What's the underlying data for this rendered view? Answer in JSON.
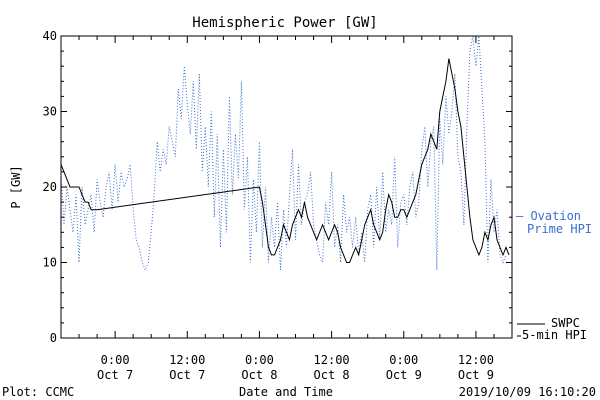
{
  "chart_data": {
    "type": "line",
    "title": "Hemispheric Power [GW]",
    "xlabel": "Date and Time",
    "ylabel": "P [GW]",
    "ylim": [
      0,
      40
    ],
    "xlim": [
      -9,
      66
    ],
    "yticks": [
      0,
      10,
      20,
      30,
      40
    ],
    "xticks": [
      {
        "h": 0,
        "time": "0:00",
        "date": "Oct 7"
      },
      {
        "h": 12,
        "time": "12:00",
        "date": "Oct 7"
      },
      {
        "h": 24,
        "time": "0:00",
        "date": "Oct 8"
      },
      {
        "h": 36,
        "time": "12:00",
        "date": "Oct 8"
      },
      {
        "h": 48,
        "time": "0:00",
        "date": "Oct 9"
      },
      {
        "h": 60,
        "time": "12:00",
        "date": "Oct 9"
      }
    ],
    "series": [
      {
        "name": "Ovation Prime HPI",
        "legend_text": "— Ovation",
        "legend_text2": "Prime HPI",
        "style": "dotted",
        "color": "#3a6fd0",
        "x": [
          -9,
          -8.5,
          -8,
          -7.5,
          -7,
          -6.5,
          -6,
          -5.5,
          -5,
          -4.5,
          -4,
          -3.5,
          -3,
          -2.5,
          -2,
          -1.5,
          -1,
          -0.5,
          0,
          0.5,
          1,
          1.5,
          2,
          2.5,
          3,
          3.5,
          4,
          4.5,
          5,
          5.5,
          6,
          6.5,
          7,
          7.5,
          8,
          8.5,
          9,
          9.5,
          10,
          10.5,
          11,
          11.5,
          12,
          12.5,
          13,
          13.5,
          14,
          14.5,
          15,
          15.5,
          16,
          16.5,
          17,
          17.5,
          18,
          18.5,
          19,
          19.5,
          20,
          20.5,
          21,
          21.5,
          22,
          22.5,
          23,
          23.5,
          24,
          24.5,
          25,
          25.5,
          26,
          26.5,
          27,
          27.5,
          28,
          28.5,
          29,
          29.5,
          30,
          30.5,
          31,
          31.5,
          32,
          32.5,
          33,
          33.5,
          34,
          34.5,
          35,
          35.5,
          36,
          36.5,
          37,
          37.5,
          38,
          38.5,
          39,
          39.5,
          40,
          40.5,
          41,
          41.5,
          42,
          42.5,
          43,
          43.5,
          44,
          44.5,
          45,
          45.5,
          46,
          46.5,
          47,
          47.5,
          48,
          48.5,
          49,
          49.5,
          50,
          50.5,
          51,
          51.5,
          52,
          52.5,
          53,
          53.5,
          54,
          54.5,
          55,
          55.5,
          56,
          56.5,
          57,
          57.5,
          58,
          58.5,
          59,
          59.5,
          60,
          60.5,
          61,
          61.5,
          62,
          62.5,
          63,
          63.5,
          64,
          64.5,
          65
        ],
        "values": [
          22,
          15,
          20,
          17,
          14,
          19,
          10,
          20,
          15,
          17,
          19,
          14,
          21,
          18,
          16,
          20,
          22,
          17,
          23,
          18,
          22,
          20,
          21,
          23,
          17,
          13,
          12,
          10,
          9,
          10,
          14,
          19,
          26,
          22,
          25,
          23,
          28,
          26,
          24,
          33,
          29,
          36,
          31,
          27,
          34,
          25,
          35,
          22,
          28,
          20,
          30,
          16,
          27,
          12,
          25,
          14,
          32,
          19,
          27,
          21,
          34,
          17,
          24,
          10,
          21,
          14,
          26,
          12,
          20,
          10,
          16,
          12,
          18,
          9,
          17,
          12,
          19,
          25,
          13,
          23,
          15,
          18,
          19,
          22,
          15,
          13,
          11,
          10,
          18,
          15,
          22,
          12,
          15,
          10,
          19,
          14,
          16,
          12,
          16,
          11,
          14,
          10,
          17,
          19,
          12,
          20,
          13,
          22,
          14,
          17,
          15,
          24,
          12,
          18,
          19,
          15,
          20,
          22,
          16,
          18,
          25,
          28,
          20,
          26,
          28,
          9,
          29,
          23,
          32,
          27,
          30,
          35,
          24,
          22,
          15,
          28,
          38,
          40,
          36,
          40,
          33,
          26,
          10,
          21,
          14,
          17,
          11,
          10,
          11
        ],
        "legend_position": "right"
      },
      {
        "name": "SWPC 5-min HPI",
        "legend_text": "SWPC",
        "legend_text2": "5-min HPI",
        "style": "solid",
        "color": "#000000",
        "x": [
          -9,
          -8.5,
          -8,
          -7.5,
          -7,
          -6.5,
          -6,
          -5.5,
          -5,
          -4.5,
          -4,
          -3.5,
          -3,
          24,
          24.5,
          25,
          25.5,
          26,
          26.5,
          27,
          27.5,
          28,
          28.5,
          29,
          29.5,
          30,
          30.5,
          31,
          31.5,
          32,
          32.5,
          33,
          33.5,
          34,
          34.5,
          35,
          35.5,
          36,
          36.5,
          37,
          37.5,
          38,
          38.5,
          39,
          39.5,
          40,
          40.5,
          41,
          41.5,
          42,
          42.5,
          43,
          43.5,
          44,
          44.5,
          45,
          45.5,
          46,
          46.5,
          47,
          47.5,
          48,
          48.5,
          49,
          49.5,
          50,
          50.5,
          51,
          51.5,
          52,
          52.5,
          53,
          53.5,
          54,
          54.5,
          55,
          55.5,
          56,
          56.5,
          57,
          57.5,
          58,
          58.5,
          59,
          59.5,
          60,
          60.5,
          61,
          61.5,
          62,
          62.5,
          63,
          63.5,
          64,
          64.5,
          65,
          65.5
        ],
        "values": [
          23,
          22,
          21,
          20,
          20,
          20,
          20,
          19,
          18,
          18,
          17,
          17,
          17,
          20,
          18,
          15,
          12,
          11,
          11,
          12,
          13,
          15,
          14,
          13,
          15,
          16,
          17,
          16,
          18,
          16,
          15,
          14,
          13,
          14,
          15,
          14,
          13,
          14,
          15,
          14,
          12,
          11,
          10,
          10,
          11,
          12,
          11,
          13,
          15,
          16,
          17,
          15,
          14,
          13,
          14,
          17,
          19,
          18,
          16,
          16,
          17,
          17,
          16,
          17,
          18,
          19,
          21,
          23,
          24,
          25,
          27,
          26,
          25,
          30,
          32,
          34,
          37,
          35,
          33,
          30,
          28,
          24,
          20,
          16,
          13,
          12,
          11,
          12,
          14,
          13,
          15,
          16,
          13,
          12,
          11,
          12,
          11
        ],
        "legend_position": "right-bottom"
      }
    ],
    "grid": false
  },
  "footer": {
    "left": "Plot: CCMC",
    "center": "Date and Time",
    "right": "2019/10/09 16:10:20"
  }
}
